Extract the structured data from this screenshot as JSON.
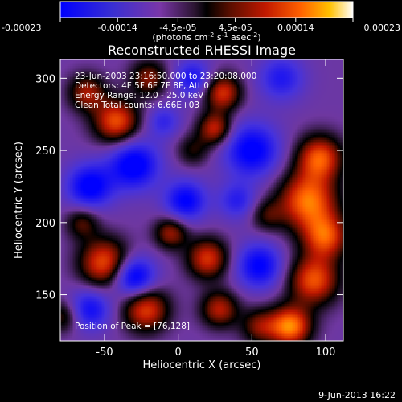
{
  "chart_data": {
    "type": "heatmap",
    "title": "Reconstructed RHESSI Image",
    "xlabel": "Heliocentric X (arcsec)",
    "ylabel": "Heliocentric Y (arcsec)",
    "xlim": [
      -80,
      112
    ],
    "ylim": [
      118,
      313
    ],
    "x_ticks": [
      -50,
      0,
      50,
      100
    ],
    "y_ticks": [
      150,
      200,
      250,
      300
    ],
    "colorbar": {
      "range": [
        -0.00023,
        0.00023
      ],
      "ticks": [
        "-0.00023",
        "-0.00014",
        "-4.5e-05",
        "4.5e-05",
        "0.00014",
        "0.00023"
      ],
      "unit_prefix": "(photons cm",
      "unit_exp1": "-2",
      "unit_mid": " s",
      "unit_exp2": "-1",
      "unit_suffix": " asec",
      "unit_exp3": "-2",
      "unit_close": ")"
    },
    "info_lines": [
      "23-Jun-2003 23:16:50.000 to 23:20:08.000",
      "Detectors: 4F 5F 6F 7F 8F, Att 0",
      "Energy Range: 12.0 - 25.0 keV",
      "Clean    Total counts: 6.66E+03"
    ],
    "peak_label": "Position of Peak = [76,128]",
    "peak": [
      76,
      128
    ],
    "sources": [
      {
        "x": 76,
        "y": 128,
        "amp": 1.0,
        "s": 10
      },
      {
        "x": 92,
        "y": 160,
        "amp": 0.85,
        "s": 12
      },
      {
        "x": 88,
        "y": 215,
        "amp": 0.95,
        "s": 14
      },
      {
        "x": 96,
        "y": 245,
        "amp": 0.85,
        "s": 11
      },
      {
        "x": 100,
        "y": 190,
        "amp": 0.8,
        "s": 11
      },
      {
        "x": 30,
        "y": 290,
        "amp": 0.75,
        "s": 9
      },
      {
        "x": 25,
        "y": 265,
        "amp": 0.7,
        "s": 8
      },
      {
        "x": -42,
        "y": 270,
        "amp": 0.85,
        "s": 11
      },
      {
        "x": -62,
        "y": 290,
        "amp": 0.6,
        "s": 9
      },
      {
        "x": -20,
        "y": 300,
        "amp": 0.55,
        "s": 9
      },
      {
        "x": -50,
        "y": 172,
        "amp": 0.85,
        "s": 12
      },
      {
        "x": -22,
        "y": 140,
        "amp": 0.8,
        "s": 11
      },
      {
        "x": 20,
        "y": 175,
        "amp": 0.75,
        "s": 10
      },
      {
        "x": 28,
        "y": 140,
        "amp": 0.65,
        "s": 9
      },
      {
        "x": -5,
        "y": 193,
        "amp": 0.6,
        "s": 8
      },
      {
        "x": -65,
        "y": 200,
        "amp": 0.45,
        "s": 8
      },
      {
        "x": -78,
        "y": 135,
        "amp": 0.45,
        "s": 8
      },
      {
        "x": 55,
        "y": 128,
        "amp": 0.5,
        "s": 9
      },
      {
        "x": 60,
        "y": 205,
        "amp": 0.35,
        "s": 8
      },
      {
        "x": 10,
        "y": 250,
        "amp": 0.35,
        "s": 8
      },
      {
        "x": -30,
        "y": 240,
        "amp": -0.8,
        "s": 12
      },
      {
        "x": 50,
        "y": 250,
        "amp": -0.75,
        "s": 13
      },
      {
        "x": -60,
        "y": 225,
        "amp": -0.75,
        "s": 11
      },
      {
        "x": -30,
        "y": 162,
        "amp": -0.85,
        "s": 10
      },
      {
        "x": 5,
        "y": 215,
        "amp": -0.7,
        "s": 10
      },
      {
        "x": 55,
        "y": 170,
        "amp": -0.7,
        "s": 11
      },
      {
        "x": -60,
        "y": 140,
        "amp": -0.6,
        "s": 10
      },
      {
        "x": 10,
        "y": 300,
        "amp": -0.55,
        "s": 9
      },
      {
        "x": 70,
        "y": 300,
        "amp": -0.5,
        "s": 11
      },
      {
        "x": 40,
        "y": 215,
        "amp": -0.45,
        "s": 9
      },
      {
        "x": -10,
        "y": 270,
        "amp": -0.4,
        "s": 8
      }
    ]
  },
  "footer": {
    "timestamp": "9-Jun-2013 16:22"
  }
}
